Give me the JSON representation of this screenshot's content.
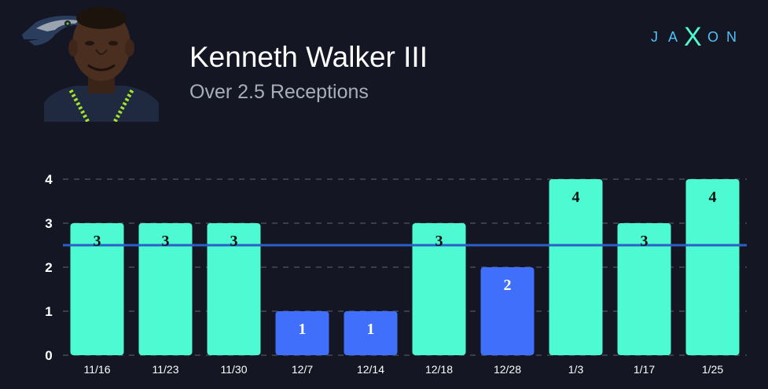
{
  "header": {
    "player_name": "Kenneth Walker III",
    "prop_label": "Over 2.5 Receptions"
  },
  "brand": {
    "name": "JAXON",
    "letters": [
      "J",
      "A",
      "X",
      "O",
      "N"
    ]
  },
  "icons": {
    "team_logo": "seahawks-logo-icon",
    "headshot": "player-headshot",
    "brand_logo": "jaxon-logo-icon"
  },
  "colors": {
    "background": "#141623",
    "over_bar": "#4dfad1",
    "under_bar": "#3f6ffb",
    "line": "#2c5fc9",
    "grid": "#3a3d4a",
    "brand_cyan": "#4fc3f7",
    "brand_x": "#4dfad1"
  },
  "chart_data": {
    "type": "bar",
    "categories": [
      "11/16",
      "11/23",
      "11/30",
      "12/7",
      "12/14",
      "12/18",
      "12/28",
      "1/3",
      "1/17",
      "1/25"
    ],
    "values": [
      3,
      3,
      3,
      1,
      1,
      3,
      2,
      4,
      3,
      4
    ],
    "line_value": 2.5,
    "ylim": [
      0,
      4
    ],
    "yticks": [
      0,
      1,
      2,
      3,
      4
    ],
    "grid": true,
    "title": "",
    "xlabel": "",
    "ylabel": ""
  }
}
